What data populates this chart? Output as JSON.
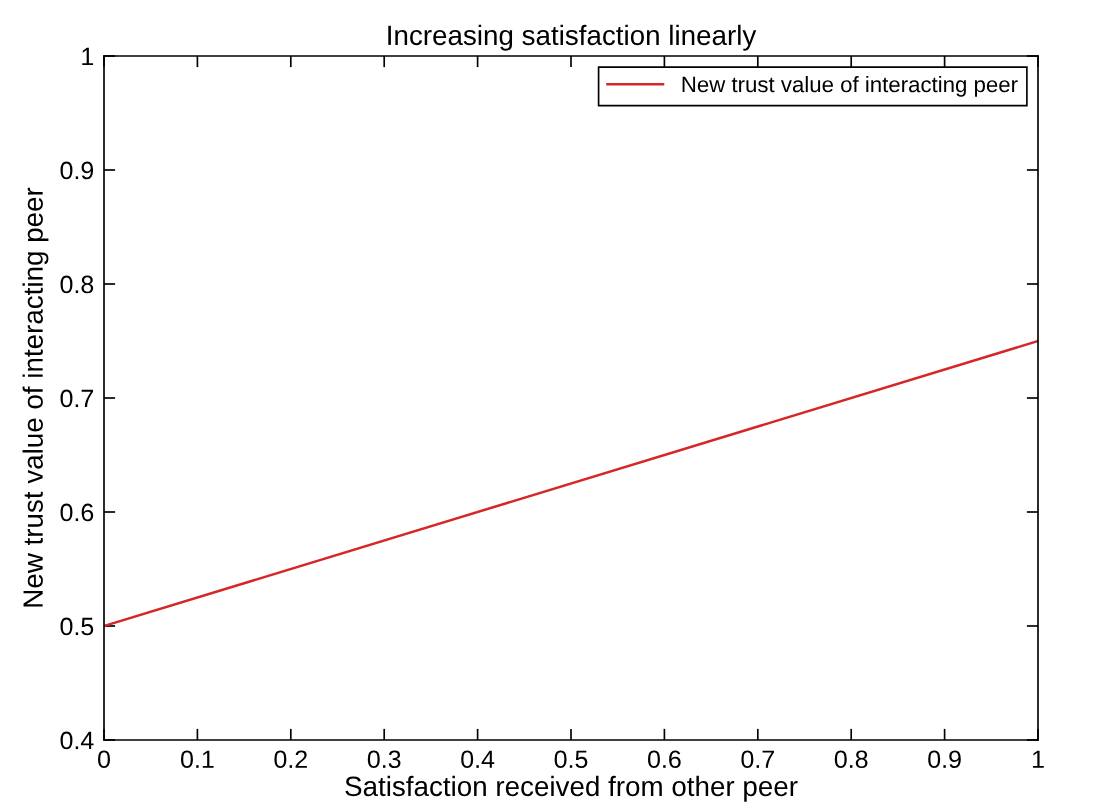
{
  "chart_data": {
    "type": "line",
    "title": "Increasing satisfaction linearly",
    "xlabel": "Satisfaction received from other peer",
    "ylabel": "New trust value of interacting peer",
    "x": [
      0,
      1
    ],
    "series": [
      {
        "name": "New trust value of interacting peer",
        "color": "#d62728",
        "values": [
          0.5,
          0.75
        ]
      }
    ],
    "xlim": [
      0,
      1
    ],
    "ylim": [
      0.4,
      1
    ],
    "xticks": [
      0,
      0.1,
      0.2,
      0.3,
      0.4,
      0.5,
      0.6,
      0.7,
      0.8,
      0.9,
      1
    ],
    "yticks": [
      0.4,
      0.5,
      0.6,
      0.7,
      0.8,
      0.9,
      1
    ],
    "legend": "top right",
    "grid": false
  }
}
